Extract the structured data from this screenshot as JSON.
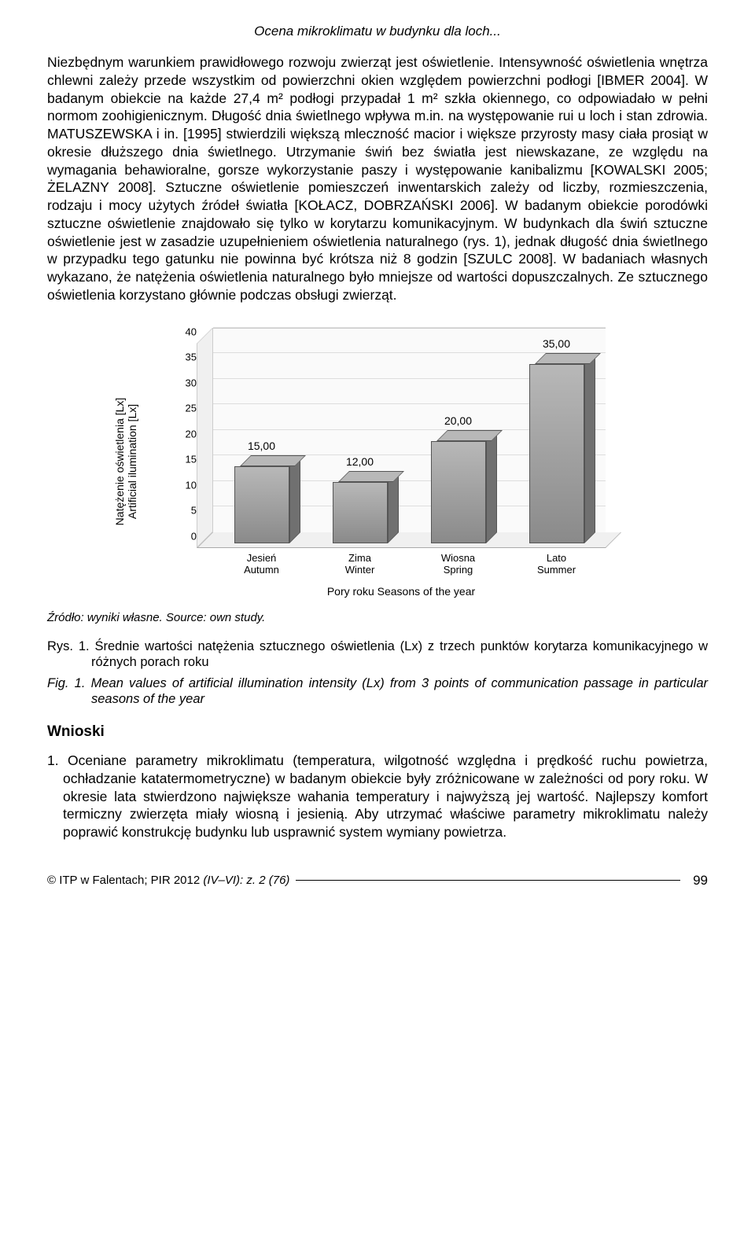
{
  "header": {
    "running_title": "Ocena mikroklimatu w budynku dla loch..."
  },
  "body": {
    "paragraph": "Niezbędnym warunkiem prawidłowego rozwoju zwierząt jest oświetlenie. Intensywność oświetlenia wnętrza chlewni zależy przede wszystkim od powierzchni okien względem powierzchni podłogi [IBMER 2004]. W badanym obiekcie na każde 27,4 m² podłogi przypadał 1 m² szkła okiennego, co odpowiadało w pełni normom zoohigienicznym. Długość dnia świetlnego wpływa m.in. na występowanie rui u loch i stan zdrowia. MATUSZEWSKA i in. [1995] stwierdzili większą mleczność macior i większe przyrosty masy ciała prosiąt w okresie dłuższego dnia świetlnego. Utrzymanie świń bez światła jest niewskazane, ze względu na wymagania behawioralne, gorsze wykorzystanie paszy i występowanie kanibalizmu [KOWALSKI 2005; ŻELAZNY 2008]. Sztuczne oświetlenie pomieszczeń inwentarskich zależy od liczby, rozmieszczenia, rodzaju i mocy użytych źródeł światła [KOŁACZ, DOBRZAŃSKI 2006]. W badanym obiekcie porodówki sztuczne oświetlenie znajdowało się tylko w korytarzu komunikacyjnym. W budynkach dla świń sztuczne oświetlenie jest w zasadzie uzupełnieniem oświetlenia naturalnego (rys. 1), jednak długość dnia świetlnego w przypadku tego gatunku nie powinna być krótsza niż 8 godzin [SZULC 2008]. W badaniach własnych wykazano, że natężenia oświetlenia naturalnego było mniejsze od wartości dopuszczalnych. Ze sztucznego oświetlenia korzystano głównie podczas obsługi zwierząt."
  },
  "chart": {
    "type": "bar",
    "y_label": "Natężenie oświetlenia [Lx]\nArtificial ilumination [Lx]",
    "x_title": "Pory roku  Seasons of the year",
    "y_ticks": [
      0,
      5,
      10,
      15,
      20,
      25,
      30,
      35,
      40
    ],
    "ylim": [
      0,
      40
    ],
    "categories": [
      {
        "pl": "Jesień",
        "en": "Autumn"
      },
      {
        "pl": "Zima",
        "en": "Winter"
      },
      {
        "pl": "Wiosna",
        "en": "Spring"
      },
      {
        "pl": "Lato",
        "en": "Summer"
      }
    ],
    "values": [
      15.0,
      12.0,
      20.0,
      35.0
    ],
    "value_labels": [
      "15,00",
      "12,00",
      "20,00",
      "35,00"
    ],
    "bar_color": "#8a8a8a",
    "bar_top_color": "#b8b8b8",
    "bar_side_color": "#707070",
    "background_color": "#fafafa",
    "grid_color": "#dddddd",
    "floor_color": "#f0f0f0",
    "label_fontsize": 14,
    "tick_fontsize": 13
  },
  "source": {
    "pl": "Źródło: wyniki własne.",
    "en": "Source: own study."
  },
  "figure_caption": {
    "pl_label": "Rys. 1.",
    "pl_text": "Średnie wartości natężenia sztucznego oświetlenia (Lx) z trzech punktów korytarza komunikacyjnego w różnych porach roku",
    "en_label": "Fig. 1.",
    "en_text": "Mean values of artificial illumination intensity (Lx) from 3 points of communication passage in particular seasons of the year"
  },
  "conclusions": {
    "heading": "Wnioski",
    "item1_num": "1.",
    "item1_text": "Oceniane parametry mikroklimatu (temperatura, wilgotność względna i prędkość ruchu powietrza, ochładzanie katatermometryczne) w badanym obiekcie były zróżnicowane w zależności od pory roku. W okresie lata stwierdzono największe wahania temperatury i najwyższą jej wartość. Najlepszy komfort termiczny zwierzęta miały wiosną i jesienią. Aby utrzymać właściwe parametry mikroklimatu należy poprawić konstrukcję budynku lub usprawnić system wymiany powietrza."
  },
  "footer": {
    "copyright": "© ITP w Falentach; PIR 2012",
    "issue": "(IV–VI): z. 2 (76)",
    "page": "99"
  }
}
